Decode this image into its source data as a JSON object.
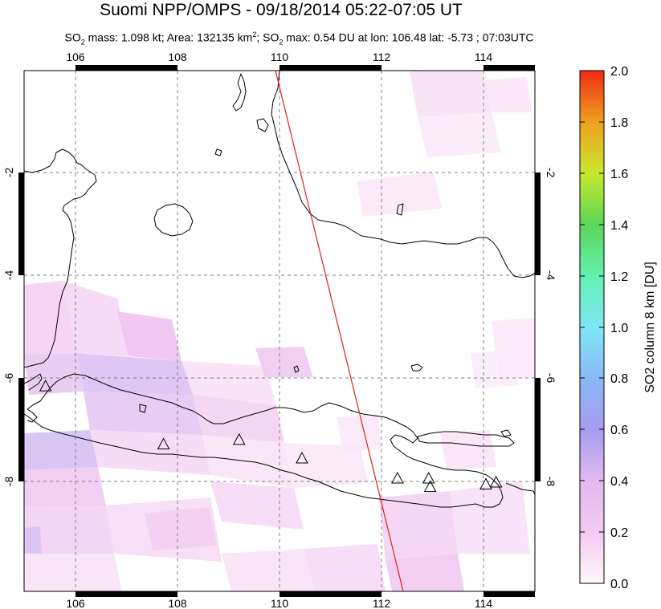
{
  "header": {
    "title": "Suomi NPP/OMPS - 09/18/2014 05:22-07:05 UT",
    "stats": {
      "so2_mass": "1.098 kt",
      "area": "132135 km",
      "so2_max": "0.54 DU",
      "lon": "106.48",
      "lat": "-5.73",
      "time": "07:03UTC"
    }
  },
  "map": {
    "lon_ticks": [
      "106",
      "108",
      "110",
      "112",
      "114"
    ],
    "lat_ticks": [
      "-2",
      "-4",
      "-6",
      "-8"
    ],
    "lon_range": [
      105,
      115
    ],
    "lat_range": [
      -10.2,
      0.2
    ]
  },
  "colorbar": {
    "label": "SO2 column 8 km [DU]",
    "ticks": [
      "2.0",
      "1.8",
      "1.6",
      "1.4",
      "1.2",
      "1.0",
      "0.8",
      "0.6",
      "0.4",
      "0.2",
      "0.0"
    ],
    "range": [
      0.0,
      2.0
    ]
  },
  "volcanoes": [
    {
      "lon": 105.42,
      "lat": -6.1
    },
    {
      "lon": 107.73,
      "lat": -7.26
    },
    {
      "lon": 109.21,
      "lat": -7.17
    },
    {
      "lon": 110.44,
      "lat": -7.54
    },
    {
      "lon": 112.31,
      "lat": -7.94
    },
    {
      "lon": 112.92,
      "lat": -7.94
    },
    {
      "lon": 112.95,
      "lat": -8.11
    },
    {
      "lon": 114.04,
      "lat": -8.06
    },
    {
      "lon": 114.24,
      "lat": -8.02
    }
  ],
  "colors": {
    "orbit_line": "#e02020",
    "coast": "#000000",
    "grid": "#808080",
    "so2_light": "#f8dcf5",
    "so2_mid": "#f1c2ef",
    "so2_high": "#ddc0f5"
  }
}
